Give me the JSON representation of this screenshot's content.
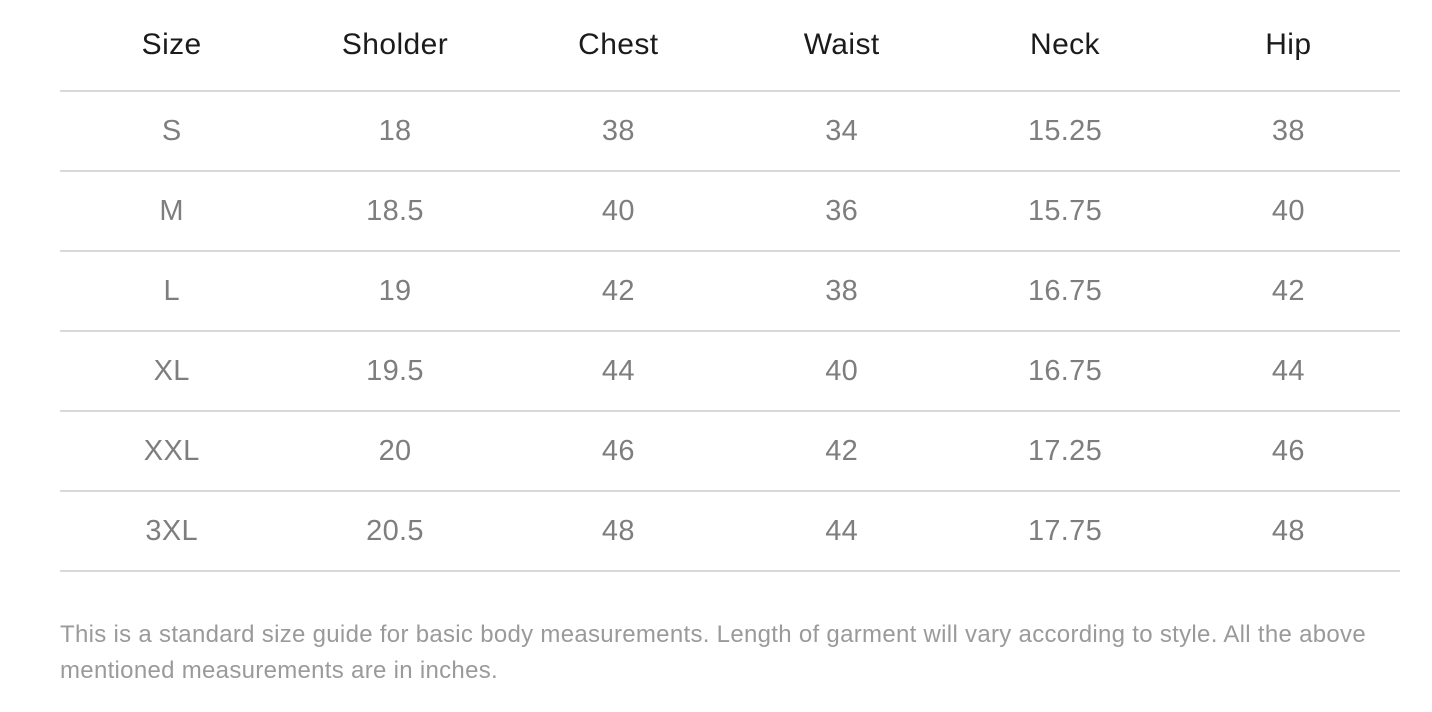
{
  "table": {
    "columns": [
      "Size",
      "Sholder",
      "Chest",
      "Waist",
      "Neck",
      "Hip"
    ],
    "rows": [
      [
        "S",
        "18",
        "38",
        "34",
        "15.25",
        "38"
      ],
      [
        "M",
        "18.5",
        "40",
        "36",
        "15.75",
        "40"
      ],
      [
        "L",
        "19",
        "42",
        "38",
        "16.75",
        "42"
      ],
      [
        "XL",
        "19.5",
        "44",
        "40",
        "16.75",
        "44"
      ],
      [
        "XXL",
        "20",
        "46",
        "42",
        "17.25",
        "46"
      ],
      [
        "3XL",
        "20.5",
        "48",
        "44",
        "17.75",
        "48"
      ]
    ]
  },
  "note": "This is a standard size guide for basic body measurements. Length of garment will vary according to style. All the above mentioned measurements are in inches.",
  "colors": {
    "header_text": "#1b1b1b",
    "cell_text": "#7e7e7e",
    "border": "#d9d9d9",
    "note_text": "#9a9a9a"
  }
}
